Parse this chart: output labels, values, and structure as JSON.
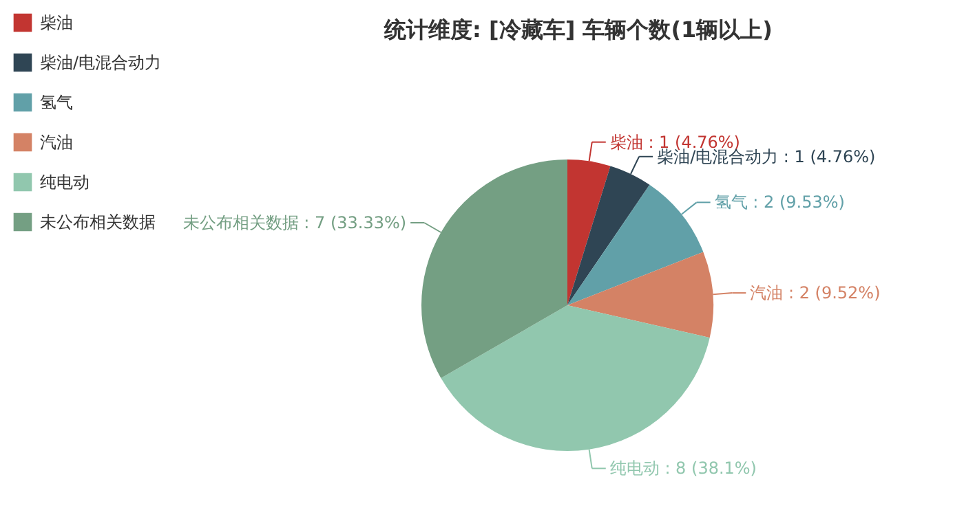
{
  "chart_data": {
    "type": "pie",
    "title": "统计维度: [冷藏车] 车辆个数(1辆以上)",
    "categories": [
      "柴油",
      "柴油/电混合动力",
      "氢气",
      "汽油",
      "纯电动",
      "未公布相关数据"
    ],
    "values": [
      1,
      1,
      2,
      2,
      8,
      7
    ],
    "colors": [
      "#c23531",
      "#2f4554",
      "#61a0a8",
      "#d48265",
      "#91c7ae",
      "#749f83"
    ],
    "value_labels": [
      "柴油 : 1 (4.76%)",
      "柴油/电混合动力 : 1 (4.76%)",
      "氢气 : 2 (9.53%)",
      "汽油 : 2 (9.52%)",
      "纯电动 : 8 (38.1%)",
      "未公布相关数据 : 7 (33.33%)"
    ],
    "legend": "top left"
  }
}
